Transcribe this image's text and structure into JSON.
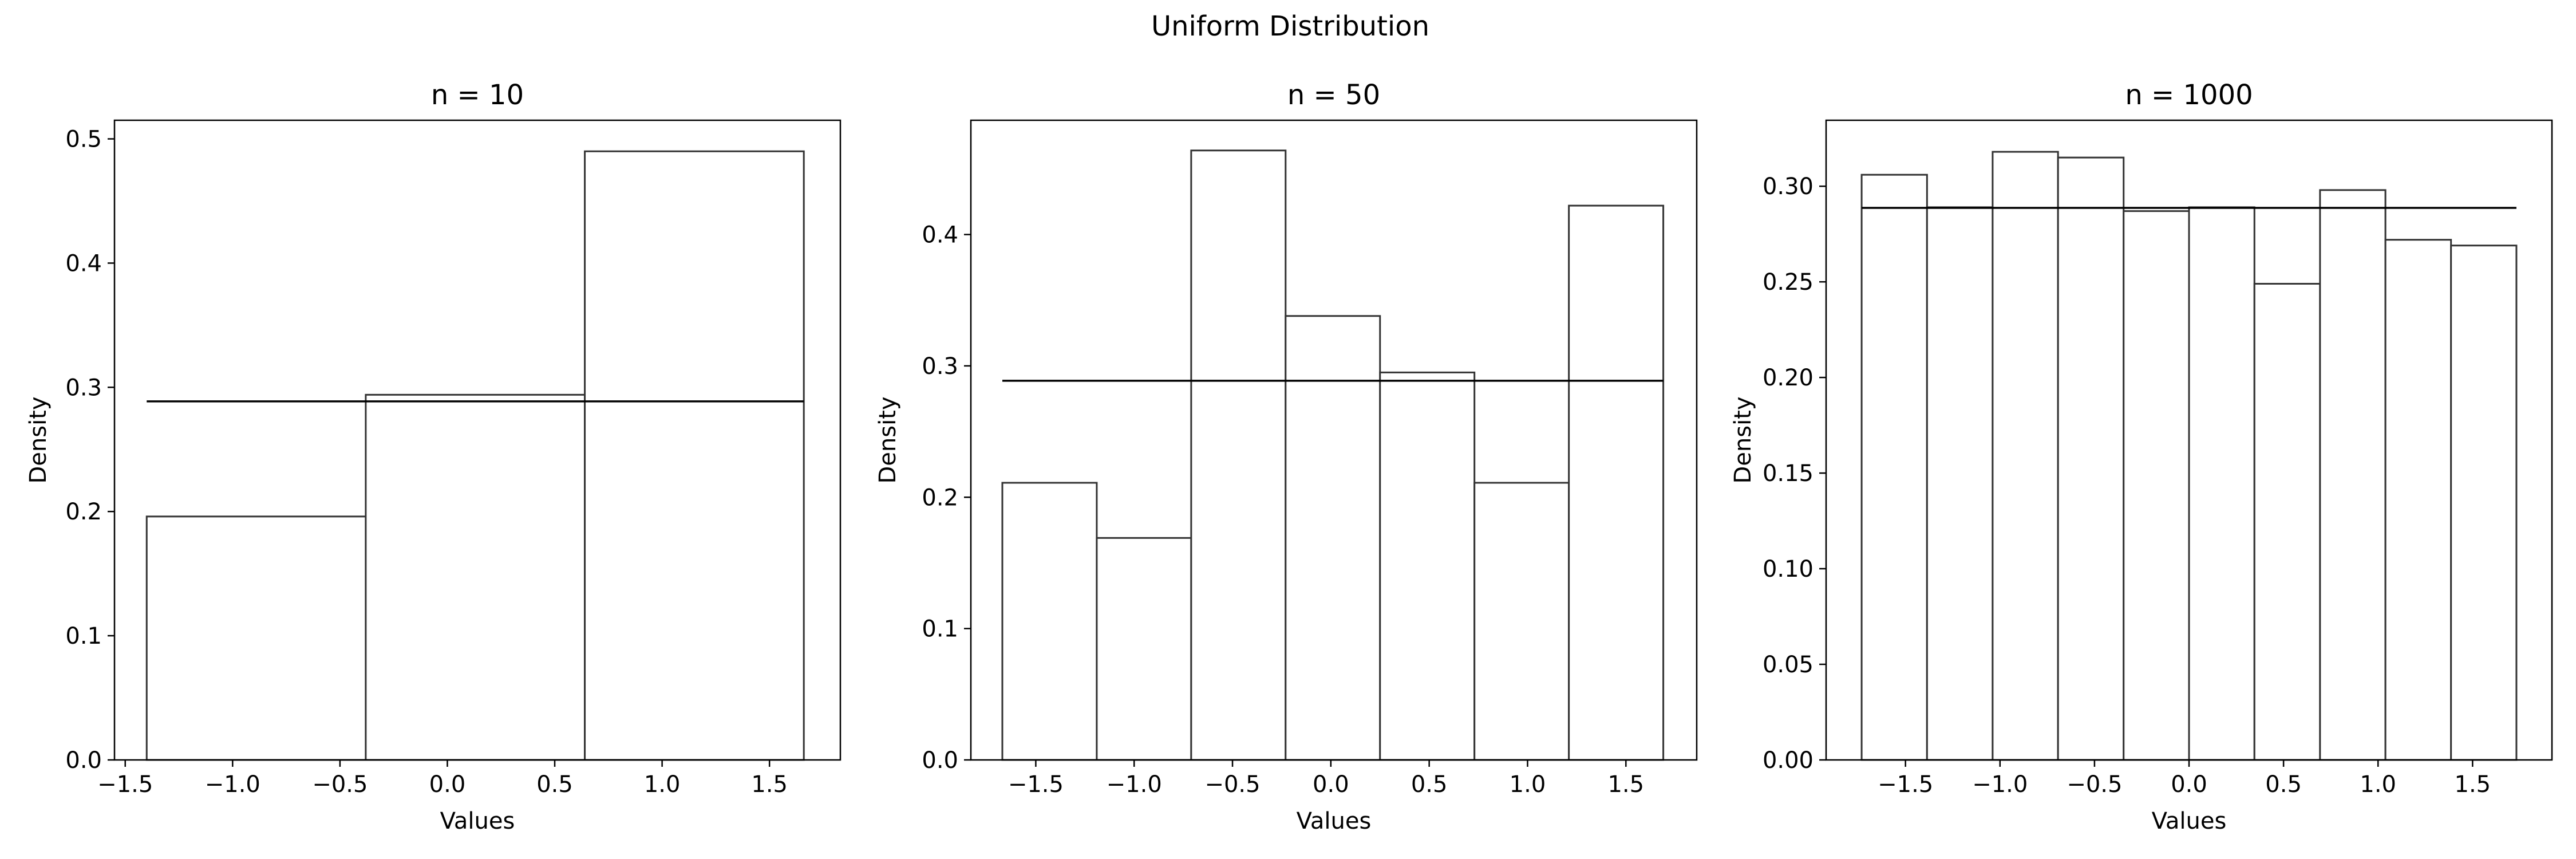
{
  "figure": {
    "suptitle": "Uniform Distribution"
  },
  "chart_data": [
    {
      "type": "bar",
      "title": "n = 10",
      "xlabel": "Values",
      "ylabel": "Density",
      "xlim": [
        -1.55,
        1.83
      ],
      "ylim": [
        0,
        0.515
      ],
      "xticks": [
        -1.5,
        -1.0,
        -0.5,
        0.0,
        0.5,
        1.0,
        1.5
      ],
      "xtick_labels": [
        "−1.5",
        "−1.0",
        "−0.5",
        "0.0",
        "0.5",
        "1.0",
        "1.5"
      ],
      "yticks": [
        0,
        0.1,
        0.2,
        0.3,
        0.4,
        0.5
      ],
      "ytick_labels": [
        "0.0",
        "0.1",
        "0.2",
        "0.3",
        "0.4",
        "0.5"
      ],
      "bin_edges": [
        -1.4,
        -0.38,
        0.64,
        1.66
      ],
      "values": [
        0.196,
        0.294,
        0.49
      ],
      "reference_line": {
        "y": 0.2887,
        "x": [
          -1.4,
          1.66
        ]
      },
      "grid": false,
      "bar_fill": "#ffffff",
      "bar_edge": "#333333"
    },
    {
      "type": "bar",
      "title": "n = 50",
      "xlabel": "Values",
      "ylabel": "Density",
      "xlim": [
        -1.83,
        1.86
      ],
      "ylim": [
        0,
        0.487
      ],
      "xticks": [
        -1.5,
        -1.0,
        -0.5,
        0.0,
        0.5,
        1.0,
        1.5
      ],
      "xtick_labels": [
        "−1.5",
        "−1.0",
        "−0.5",
        "0.0",
        "0.5",
        "1.0",
        "1.5"
      ],
      "yticks": [
        0,
        0.1,
        0.2,
        0.3,
        0.4
      ],
      "ytick_labels": [
        "0.0",
        "0.1",
        "0.2",
        "0.3",
        "0.4"
      ],
      "bin_edges": [
        -1.67,
        -1.19,
        -0.71,
        -0.23,
        0.25,
        0.73,
        1.21,
        1.69
      ],
      "values": [
        0.211,
        0.169,
        0.464,
        0.338,
        0.295,
        0.211,
        0.422
      ],
      "reference_line": {
        "y": 0.2887,
        "x": [
          -1.67,
          1.69
        ]
      },
      "grid": false,
      "bar_fill": "#ffffff",
      "bar_edge": "#333333"
    },
    {
      "type": "bar",
      "title": "n = 1000",
      "xlabel": "Values",
      "ylabel": "Density",
      "xlim": [
        -1.92,
        1.92
      ],
      "ylim": [
        0,
        0.3345
      ],
      "xticks": [
        -1.5,
        -1.0,
        -0.5,
        0.0,
        0.5,
        1.0,
        1.5
      ],
      "xtick_labels": [
        "−1.5",
        "−1.0",
        "−0.5",
        "0.0",
        "0.5",
        "1.0",
        "1.5"
      ],
      "yticks": [
        0,
        0.05,
        0.1,
        0.15,
        0.2,
        0.25,
        0.3
      ],
      "ytick_labels": [
        "0.00",
        "0.05",
        "0.10",
        "0.15",
        "0.20",
        "0.25",
        "0.30"
      ],
      "bin_edges": [
        -1.732,
        -1.386,
        -1.039,
        -0.693,
        -0.346,
        0.0,
        0.346,
        0.693,
        1.039,
        1.386,
        1.732
      ],
      "values": [
        0.306,
        0.289,
        0.318,
        0.315,
        0.287,
        0.289,
        0.249,
        0.298,
        0.272,
        0.269
      ],
      "reference_line": {
        "y": 0.2887,
        "x": [
          -1.732,
          1.732
        ]
      },
      "grid": false,
      "bar_fill": "#ffffff",
      "bar_edge": "#333333"
    }
  ]
}
